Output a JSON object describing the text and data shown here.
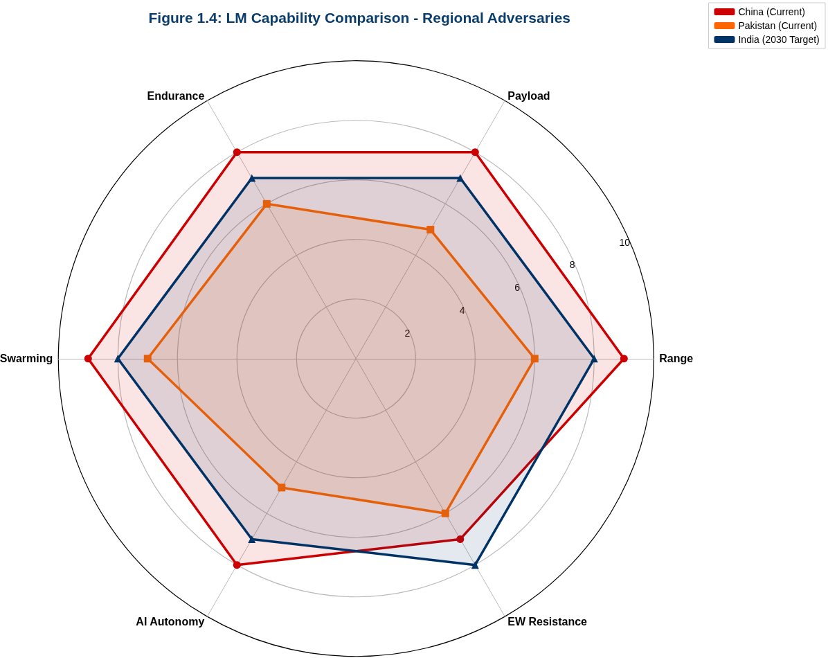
{
  "chart_data": {
    "type": "radar",
    "title": "Figure 1.4: LM Capability Comparison - Regional Adversaries",
    "categories": [
      "Payload",
      "Range",
      "EW Resistance",
      "AI Autonomy",
      "Swarming",
      "Endurance"
    ],
    "series": [
      {
        "name": "China (Current)",
        "color": "#cc0000",
        "marker": "circle",
        "values": [
          8,
          9,
          7,
          8,
          9,
          8
        ]
      },
      {
        "name": "Pakistan (Current)",
        "color": "#ff6600",
        "marker": "square",
        "values": [
          5,
          6,
          6,
          5,
          7,
          6
        ]
      },
      {
        "name": "India (2030 Target)",
        "color": "#003366",
        "marker": "triangle",
        "values": [
          7,
          8,
          8,
          7,
          8,
          7
        ]
      }
    ],
    "ylim": [
      0,
      10
    ],
    "yticks": [
      2,
      4,
      6,
      8,
      10
    ],
    "grid": true,
    "legend": "top right"
  }
}
